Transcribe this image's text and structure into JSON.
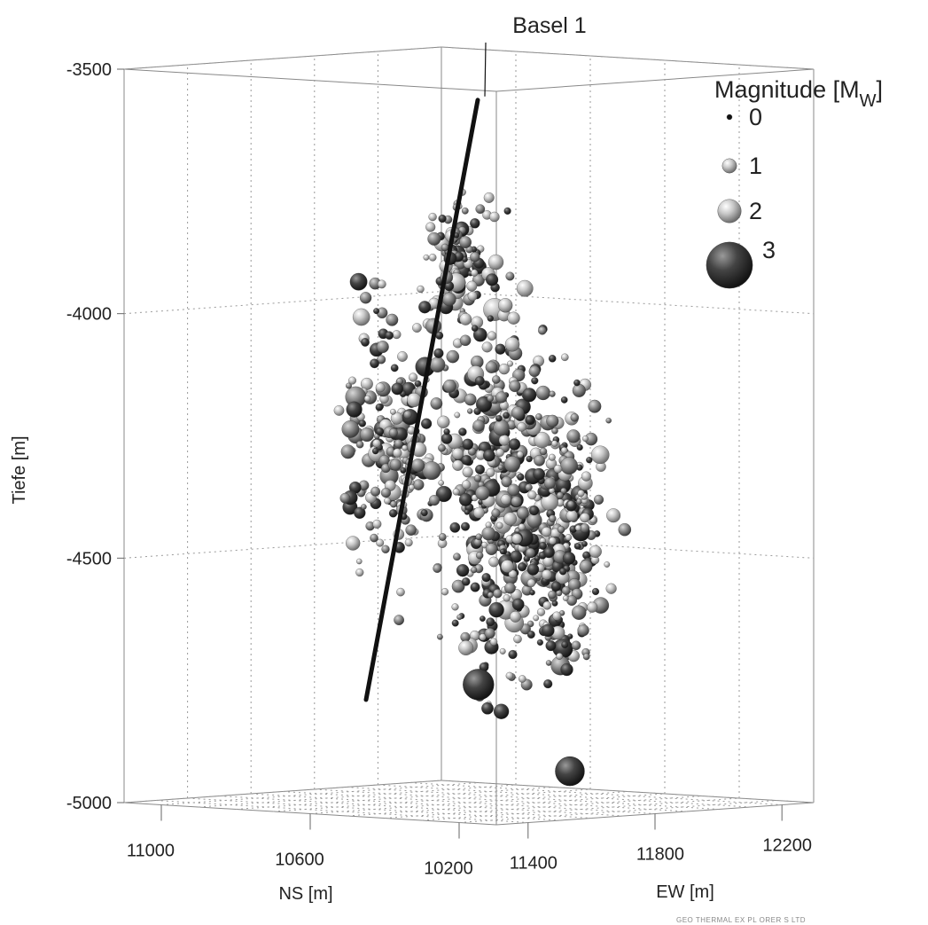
{
  "chart_data": {
    "type": "scatter",
    "projection": "3d",
    "title": "",
    "annotation": "Basel 1",
    "axes": {
      "z": {
        "label": "Tiefe [m]",
        "ticks": [
          "-3500",
          "-4000",
          "-4500",
          "-5000"
        ],
        "range": [
          -5000,
          -3500
        ]
      },
      "ns": {
        "label": "NS [m]",
        "ticks": [
          "11000",
          "10600",
          "10200"
        ],
        "range": [
          11100,
          10100
        ]
      },
      "ew": {
        "label": "EW [m]",
        "ticks": [
          "11400",
          "11800",
          "12200"
        ],
        "range": [
          11300,
          12300
        ]
      }
    },
    "grid": true,
    "legend": {
      "title": "Magnitude [M",
      "title_sub": "W",
      "title_end": "]",
      "placement": "top-right",
      "entries": [
        {
          "label": "0",
          "magnitude": 0
        },
        {
          "label": "1",
          "magnitude": 1
        },
        {
          "label": "2",
          "magnitude": 2
        },
        {
          "label": "3",
          "magnitude": 3
        }
      ]
    },
    "well": {
      "name": "Basel 1",
      "top_depth": -3520,
      "bottom_depth": -4760
    },
    "clusters": [
      {
        "nsCenter": 10390,
        "ew": 11320,
        "zCenter": -4230,
        "nsSpread": 110,
        "zSpread": 300,
        "count": 220
      },
      {
        "nsCenter": 10200,
        "ew": 11420,
        "zCenter": -4330,
        "nsSpread": 100,
        "zSpread": 380,
        "count": 360
      },
      {
        "nsCenter": 10150,
        "ew": 11560,
        "zCenter": -4420,
        "nsSpread": 80,
        "zSpread": 300,
        "count": 300
      },
      {
        "nsCenter": 10250,
        "ew": 11360,
        "zCenter": -3850,
        "nsSpread": 70,
        "zSpread": 130,
        "count": 110
      }
    ],
    "highlight_events": [
      {
        "ns": 10195,
        "ew": 11355,
        "z": -4720,
        "magnitude": 3
      },
      {
        "ns": 10090,
        "ew": 11520,
        "z": -4900,
        "magnitude": 2.8
      }
    ]
  },
  "credit": "GEO THERMAL     EX PL ORER  S  LTD"
}
